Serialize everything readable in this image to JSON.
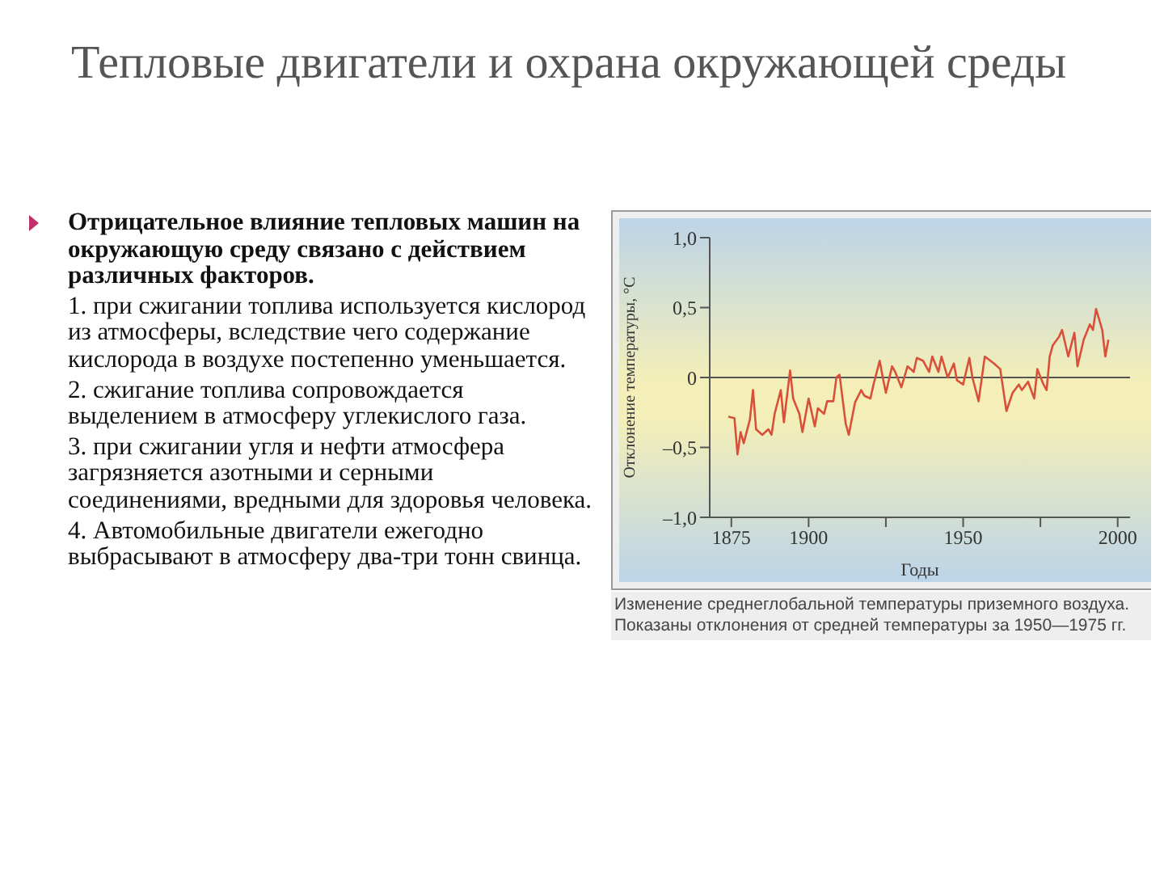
{
  "chart_data": {
    "type": "line",
    "title": "Тепловые двигатели и охрана окружающей среды",
    "xlabel": "Годы",
    "ylabel": "Отклонение температуры, °С",
    "annotations": [
      "Отрицательное влияние тепловых машин на окружающую среду связано с действием различных факторов.",
      "1. при сжигании топлива используется кислород из атмосферы, вследствие чего содержание кислорода в воздухе постепенно уменьшается.",
      "2. сжигание топлива сопровождается выделением в атмосферу углекислого газа.",
      "3. при сжигании угля и нефти атмосфера загрязняется азотными и серными соединениями, вредными для здоровья человека.",
      "4. Автомобильные двигатели ежегодно выбрасывают в атмосферу два-три тонн свинца.",
      "Изменение среднеглобальной температуры приземного воздуха. Показаны отклонения от средней температуры за 1950—1975 гг."
    ],
    "x": [
      1874,
      1876,
      1877,
      1878,
      1879,
      1881,
      1882,
      1883,
      1885,
      1887,
      1888,
      1889,
      1891,
      1892,
      1894,
      1895,
      1897,
      1898,
      1900,
      1902,
      1903,
      1905,
      1906,
      1908,
      1909,
      1910,
      1912,
      1913,
      1915,
      1917,
      1918,
      1920,
      1921,
      1923,
      1924,
      1925,
      1927,
      1928,
      1930,
      1932,
      1934,
      1935,
      1937,
      1939,
      1940,
      1942,
      1943,
      1945,
      1947,
      1948,
      1950,
      1952,
      1953,
      1955,
      1957,
      1960,
      1962,
      1964,
      1966,
      1968,
      1969,
      1971,
      1973,
      1974,
      1976,
      1977,
      1978,
      1979,
      1981,
      1982,
      1984,
      1986,
      1987,
      1989,
      1991,
      1992,
      1993,
      1995,
      1996,
      1997
    ],
    "series": [
      {
        "color": "#d9503a",
        "values": [
          -0.28,
          -0.29,
          -0.55,
          -0.39,
          -0.47,
          -0.3,
          -0.09,
          -0.37,
          -0.41,
          -0.37,
          -0.41,
          -0.26,
          -0.09,
          -0.32,
          0.05,
          -0.15,
          -0.26,
          -0.39,
          -0.15,
          -0.35,
          -0.22,
          -0.26,
          -0.17,
          -0.17,
          0.0,
          0.02,
          -0.33,
          -0.41,
          -0.18,
          -0.09,
          -0.13,
          -0.15,
          -0.05,
          0.12,
          0.0,
          -0.11,
          0.08,
          0.04,
          -0.07,
          0.08,
          0.04,
          0.14,
          0.12,
          0.04,
          0.15,
          0.04,
          0.15,
          0.0,
          0.1,
          -0.02,
          -0.05,
          0.14,
          0.0,
          -0.17,
          0.15,
          0.1,
          0.06,
          -0.24,
          -0.11,
          -0.05,
          -0.09,
          -0.03,
          -0.15,
          0.06,
          -0.05,
          -0.09,
          0.15,
          0.23,
          0.29,
          0.34,
          0.15,
          0.32,
          0.08,
          0.27,
          0.38,
          0.34,
          0.49,
          0.34,
          0.15,
          0.27
        ]
      }
    ],
    "xlim": [
      1868,
      2004
    ],
    "xticks": [
      1875,
      {
        "value": 1925,
        "label": null
      },
      1900,
      1950,
      {
        "value": 1975,
        "label": null
      },
      2000
    ],
    "ylim": [
      -1,
      1
    ],
    "yticks": [
      {
        "value": -1,
        "label": "–1,0"
      },
      {
        "value": -0.5,
        "label": "–0,5"
      },
      0,
      {
        "value": 0.5,
        "label": "0,5"
      },
      {
        "value": 1,
        "label": "1,0"
      }
    ],
    "ref_lines": [
      {
        "axis": "y",
        "value": 0,
        "color": "#555555"
      }
    ],
    "grid": false,
    "legend": false,
    "marker": "none",
    "line_style": "solid"
  }
}
